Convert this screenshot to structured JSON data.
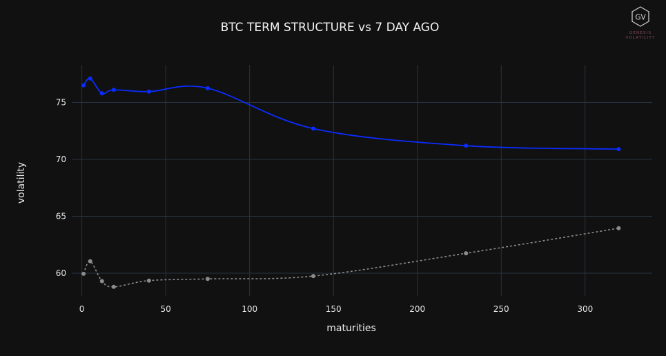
{
  "chart_data": {
    "type": "line",
    "title": "BTC TERM STRUCTURE vs 7 DAY AGO",
    "xlabel": "maturities",
    "ylabel": "volatility",
    "xlim": [
      -6,
      340
    ],
    "ylim": [
      58.0,
      78.3
    ],
    "xticks": [
      0,
      50,
      100,
      150,
      200,
      250,
      300
    ],
    "yticks": [
      60,
      65,
      70,
      75
    ],
    "grid": true,
    "colors": {
      "background": "#111111",
      "grid": "#283442",
      "current": "#0a2cff",
      "week_ago": "#8c8c8c"
    },
    "series": [
      {
        "key": "current",
        "x": [
          1,
          5,
          12,
          19,
          40,
          75,
          138,
          229,
          320
        ],
        "values": [
          76.5,
          77.1,
          75.8,
          76.1,
          75.95,
          76.25,
          72.7,
          71.2,
          70.9
        ]
      },
      {
        "key": "week_ago",
        "x": [
          1,
          5,
          12,
          19,
          40,
          75,
          138,
          229,
          320
        ],
        "values": [
          59.95,
          61.05,
          59.3,
          58.8,
          59.35,
          59.5,
          59.75,
          61.75,
          63.95
        ]
      }
    ]
  },
  "logo": {
    "mark": "GV",
    "line1": "GENESIS",
    "line2": "VOLATILITY"
  }
}
